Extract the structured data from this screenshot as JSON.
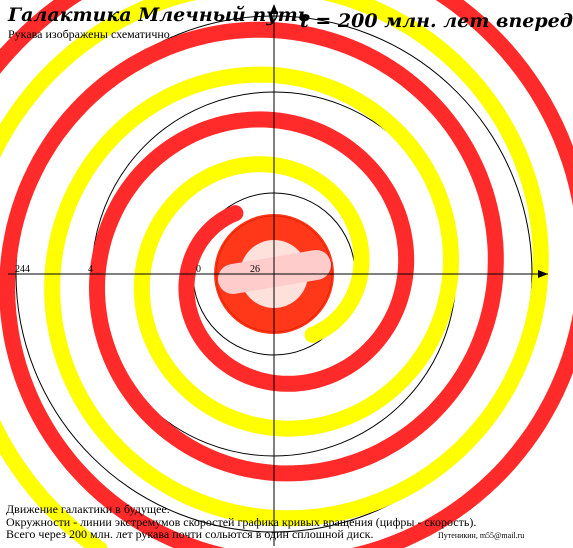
{
  "header": {
    "title": "Галактика Млечный путь",
    "time_label": "t = 200 млн. лет вперед",
    "subtitle": "Рукава изображены схематично."
  },
  "notes": [
    "Движение галактики в будущее.",
    "Окружности - линии экстремумов скоростей графика кривых вращения (цифры - скорость).",
    "Всего через 200 млн. лет рукава почти сольются в один сплошной диск."
  ],
  "credit": "Путеникин, m55@mail.ru",
  "diagram": {
    "colors": {
      "arm_red": "#ff2b2b",
      "arm_yellow": "#ffff00",
      "core": "#ff2200",
      "bar": "#ffcccc",
      "circle": "#000000"
    },
    "speed_labels": [
      {
        "value": "244"
      },
      {
        "value": "4"
      },
      {
        "value": "0"
      },
      {
        "value": "26"
      }
    ]
  }
}
